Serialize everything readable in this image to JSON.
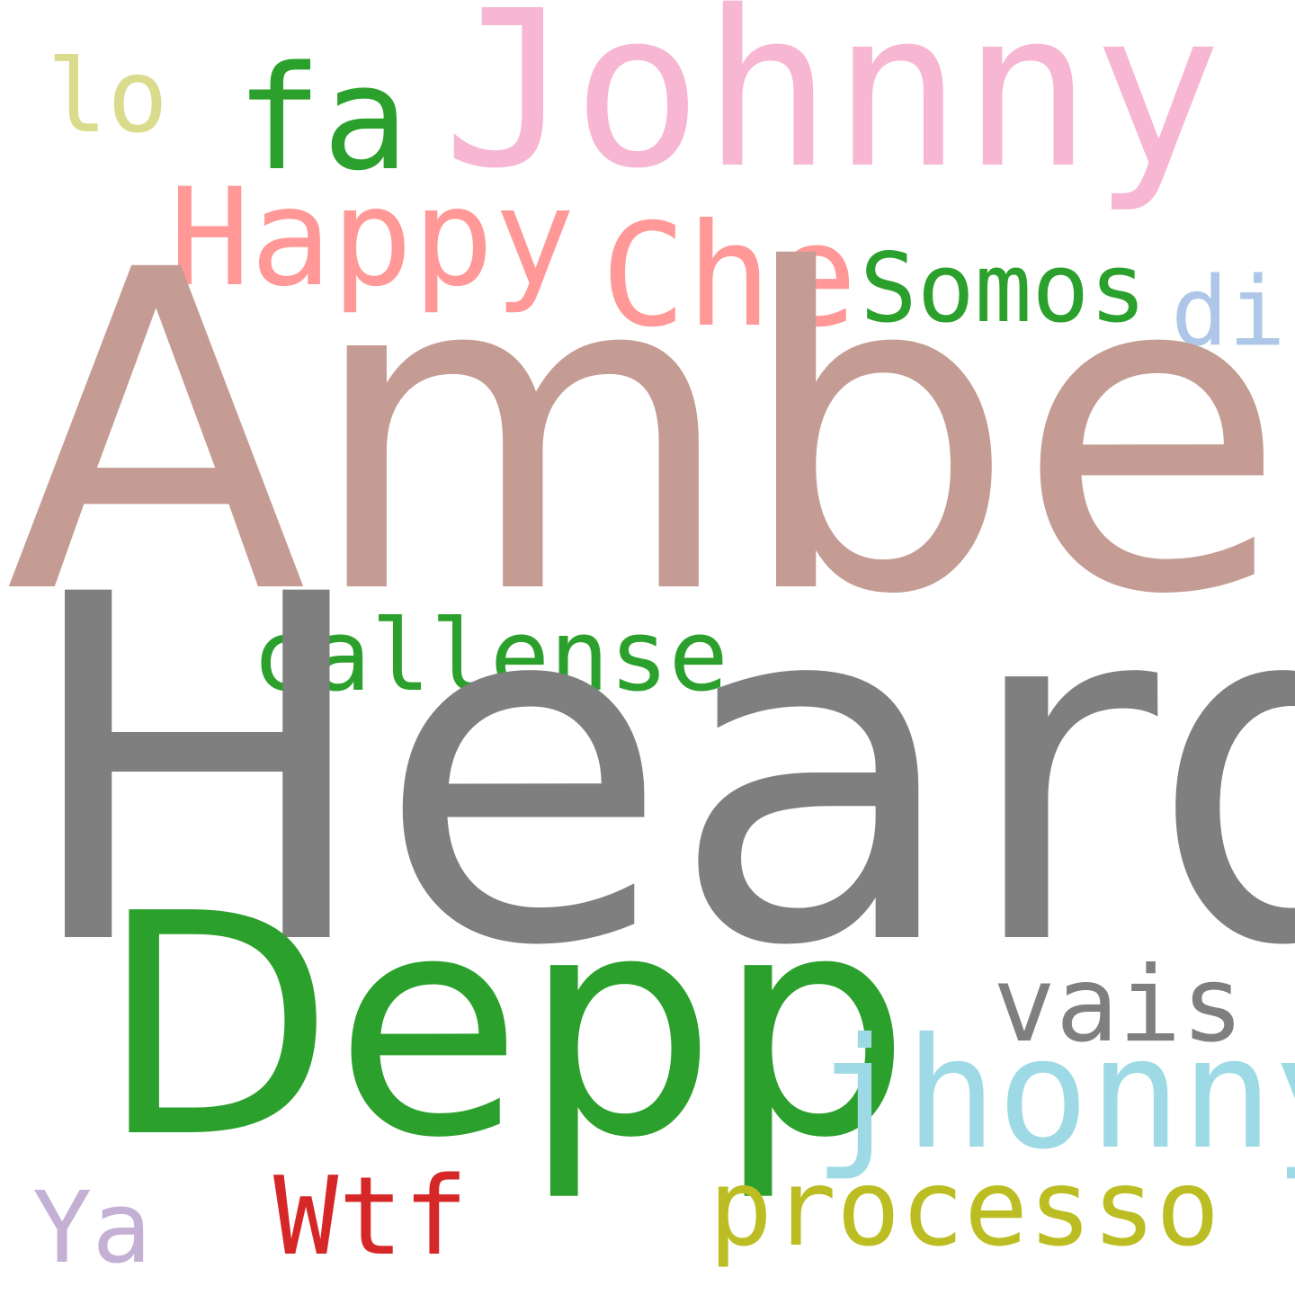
{
  "words": {
    "johnny_top": {
      "text": "Johnny",
      "color": "#f7b6d2"
    },
    "lo": {
      "text": "lo",
      "color": "#dbdb8d"
    },
    "fa": {
      "text": "fa",
      "color": "#2ca02c"
    },
    "happy": {
      "text": "Happy",
      "color": "#ff9896"
    },
    "che": {
      "text": "Che",
      "color": "#ff9896"
    },
    "somos": {
      "text": "Somos",
      "color": "#2ca02c"
    },
    "di": {
      "text": "di",
      "color": "#aec7e8"
    },
    "amber": {
      "text": "Amber",
      "color": "#c49c94"
    },
    "callense": {
      "text": "callense",
      "color": "#2ca02c"
    },
    "heard": {
      "text": "Heard",
      "color": "#7f7f7f"
    },
    "depp": {
      "text": "Depp",
      "color": "#2ca02c"
    },
    "vais": {
      "text": "vais",
      "color": "#7f7f7f"
    },
    "jhonny": {
      "text": "jhonny",
      "color": "#9edae5"
    },
    "ya": {
      "text": "Ya",
      "color": "#c5b0d5"
    },
    "wtf": {
      "text": "Wtf",
      "color": "#d62728"
    },
    "processo": {
      "text": "processo",
      "color": "#bcbd22"
    }
  }
}
